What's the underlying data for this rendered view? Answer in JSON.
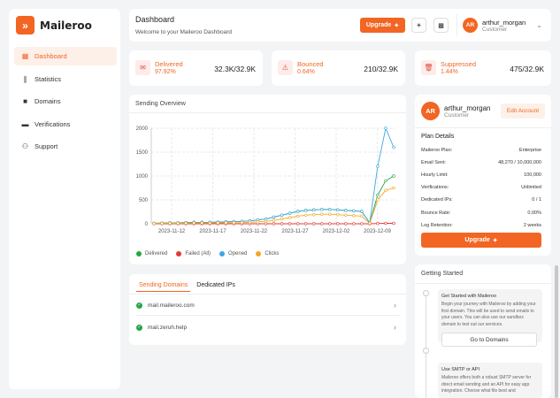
{
  "brand": {
    "name": "Maileroo",
    "logo_letter": "»"
  },
  "sidebar": {
    "items": [
      {
        "label": "Dashboard",
        "icon": "dashboard-icon",
        "active": true
      },
      {
        "label": "Statistics",
        "icon": "statistics-icon",
        "active": false
      },
      {
        "label": "Domains",
        "icon": "domains-icon",
        "active": false
      },
      {
        "label": "Verifications",
        "icon": "verifications-icon",
        "active": false
      },
      {
        "label": "Support",
        "icon": "support-icon",
        "active": false
      }
    ]
  },
  "header": {
    "title": "Dashboard",
    "subtitle": "Welcome to your Maileroo Dashboard",
    "upgrade_label": "Upgrade",
    "user": {
      "initials": "AR",
      "name": "arthur_morgan",
      "role": "Customer"
    }
  },
  "stats": [
    {
      "label": "Delivered",
      "percent": "97.92%",
      "value": "32.3K/32.9K",
      "icon": "delivered-icon"
    },
    {
      "label": "Bounced",
      "percent": "0.64%",
      "value": "210/32.9K",
      "icon": "bounced-icon"
    },
    {
      "label": "Suppressed",
      "percent": "1.44%",
      "value": "475/32.9K",
      "icon": "suppressed-icon"
    }
  ],
  "chart": {
    "title": "Sending Overview",
    "legend": [
      {
        "label": "Delivered",
        "color": "#22a745"
      },
      {
        "label": "Failed (All)",
        "color": "#e53935"
      },
      {
        "label": "Opened",
        "color": "#3ba7e6"
      },
      {
        "label": "Clicks",
        "color": "#f5a623"
      }
    ]
  },
  "chart_data": {
    "type": "line",
    "title": "Sending Overview",
    "x_ticks": [
      "2023-11-12",
      "2023-11-17",
      "2023-11-22",
      "2023-11-27",
      "2023-12-02",
      "2023-12-09"
    ],
    "y_ticks": [
      "0",
      "500",
      "1000",
      "1500",
      "2000"
    ],
    "ylim": [
      0,
      2000
    ],
    "grid": true,
    "legend_position": "bottom",
    "series": [
      {
        "name": "Delivered",
        "color": "#22a745",
        "values": [
          10,
          15,
          20,
          20,
          25,
          30,
          30,
          30,
          35,
          40,
          45,
          50,
          60,
          80,
          100,
          140,
          180,
          220,
          260,
          280,
          290,
          300,
          300,
          290,
          280,
          270,
          260,
          20,
          600,
          900,
          1000
        ]
      },
      {
        "name": "Failed (All)",
        "color": "#e53935",
        "values": [
          0,
          0,
          0,
          0,
          0,
          0,
          0,
          0,
          0,
          0,
          0,
          0,
          0,
          0,
          0,
          0,
          0,
          0,
          0,
          0,
          0,
          0,
          0,
          0,
          0,
          0,
          0,
          0,
          5,
          10,
          10
        ]
      },
      {
        "name": "Opened",
        "color": "#3ba7e6",
        "values": [
          10,
          15,
          20,
          20,
          25,
          30,
          30,
          30,
          35,
          40,
          45,
          50,
          60,
          80,
          100,
          140,
          180,
          220,
          260,
          280,
          290,
          300,
          300,
          290,
          280,
          270,
          260,
          20,
          1200,
          2000,
          1600
        ]
      },
      {
        "name": "Clicks",
        "color": "#f5a623",
        "values": [
          5,
          8,
          10,
          10,
          12,
          15,
          15,
          15,
          18,
          20,
          22,
          25,
          30,
          40,
          50,
          70,
          100,
          130,
          160,
          180,
          190,
          200,
          200,
          190,
          180,
          170,
          160,
          10,
          500,
          700,
          750
        ]
      }
    ]
  },
  "domains": {
    "tabs": [
      "Sending Domains",
      "Dedicated IPs"
    ],
    "items": [
      "mail.maileroo.com",
      "mail.zeruh.help"
    ]
  },
  "profile": {
    "initials": "AR",
    "name": "arthur_morgan",
    "role": "Customer",
    "edit_label": "Edit Account",
    "plan_title": "Plan Details",
    "plan": [
      {
        "label": "Maileroo Plan:",
        "value": "Enterprise"
      },
      {
        "label": "Email Sent:",
        "value": "48,270 / 10,000,000"
      },
      {
        "label": "Hourly Limit:",
        "value": "100,000"
      },
      {
        "label": "Verifications:",
        "value": "Unlimited"
      },
      {
        "label": "Dedicated IPs:",
        "value": "0 / 1"
      },
      {
        "label": "Bounce Rate:",
        "value": "0.00%"
      },
      {
        "label": "Log Retention:",
        "value": "2 weeks"
      }
    ],
    "upgrade_label": "Upgrade"
  },
  "getting_started": {
    "title": "Getting Started",
    "steps": [
      {
        "title": "Get Started with Maileroo",
        "text": "Begin your journey with Maileroo by adding your first domain. This will be used to send emails to your users. You can also use our sandbox domain to test out our services.",
        "button": "Go to Domains"
      },
      {
        "title": "Use SMTP or API",
        "text": "Maileroo offers both a robust SMTP server for direct email sending and an API for easy app integration. Choose what fits best and"
      }
    ]
  }
}
